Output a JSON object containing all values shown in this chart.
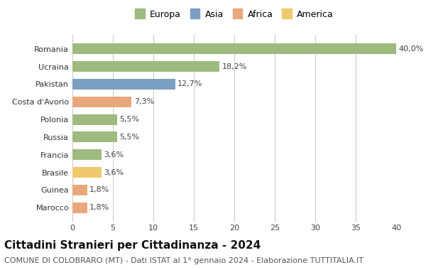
{
  "categories": [
    "Marocco",
    "Guinea",
    "Brasile",
    "Francia",
    "Russia",
    "Polonia",
    "Costa d'Avorio",
    "Pakistan",
    "Ucraina",
    "Romania"
  ],
  "values": [
    1.8,
    1.8,
    3.6,
    3.6,
    5.5,
    5.5,
    7.3,
    12.7,
    18.2,
    40.0
  ],
  "labels": [
    "1,8%",
    "1,8%",
    "3,6%",
    "3,6%",
    "5,5%",
    "5,5%",
    "7,3%",
    "12,7%",
    "18,2%",
    "40,0%"
  ],
  "colors": [
    "#e8a87c",
    "#e8a87c",
    "#f0c96e",
    "#9eba7e",
    "#9eba7e",
    "#9eba7e",
    "#e8a87c",
    "#7b9fc0",
    "#9eba7e",
    "#9eba7e"
  ],
  "continent_legend": [
    "Europa",
    "Asia",
    "Africa",
    "America"
  ],
  "legend_colors": [
    "#9eba7e",
    "#7b9fc0",
    "#e8a87c",
    "#f0c96e"
  ],
  "xlim": [
    0,
    40
  ],
  "xticks": [
    0,
    5,
    10,
    15,
    20,
    25,
    30,
    35,
    40
  ],
  "title": "Cittadini Stranieri per Cittadinanza - 2024",
  "subtitle": "COMUNE DI COLOBRARO (MT) - Dati ISTAT al 1° gennaio 2024 - Elaborazione TUTTITALIA.IT",
  "bg_color": "#ffffff",
  "grid_color": "#cccccc",
  "bar_height": 0.6,
  "label_fontsize": 8,
  "title_fontsize": 11,
  "subtitle_fontsize": 8
}
